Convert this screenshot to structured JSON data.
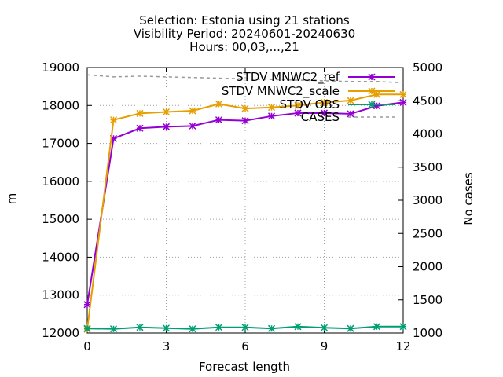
{
  "chart_data": {
    "type": "line",
    "title_lines": [
      "Selection: Estonia using    21 stations",
      "Visibility   Period: 20240601-20240630",
      "Hours: 00,03,...,21"
    ],
    "xlabel": "Forecast length",
    "ylabel": "m",
    "y2label": "No cases",
    "xlim": [
      0,
      12
    ],
    "ylim": [
      12000,
      19000
    ],
    "y2lim": [
      1000,
      5000
    ],
    "xticks": [
      0,
      3,
      6,
      9,
      12
    ],
    "yticks": [
      12000,
      13000,
      14000,
      15000,
      16000,
      17000,
      18000,
      19000
    ],
    "y2ticks": [
      1000,
      1500,
      2000,
      2500,
      3000,
      3500,
      4000,
      4500,
      5000
    ],
    "grid": true,
    "legend_position": "top-right",
    "series": [
      {
        "name": "STDV MNWC2_ref",
        "color": "#9400d3",
        "axis": "y",
        "marker": "star",
        "x": [
          0,
          1,
          2,
          3,
          4,
          5,
          6,
          7,
          8,
          9,
          10,
          11,
          12
        ],
        "values": [
          12750,
          17130,
          17400,
          17440,
          17460,
          17620,
          17600,
          17720,
          17800,
          17800,
          17780,
          17990,
          18080
        ]
      },
      {
        "name": "STDV MNWC2_scale",
        "color": "#e69f00",
        "axis": "y",
        "marker": "star",
        "x": [
          0,
          1,
          2,
          3,
          4,
          5,
          6,
          7,
          8,
          9,
          10,
          11,
          12
        ],
        "values": [
          12100,
          17620,
          17790,
          17830,
          17860,
          18040,
          17920,
          17950,
          18000,
          18080,
          18130,
          18290,
          18290
        ]
      },
      {
        "name": "STDV OBS",
        "color": "#009e73",
        "axis": "y",
        "marker": "star",
        "x": [
          0,
          1,
          2,
          3,
          4,
          5,
          6,
          7,
          8,
          9,
          10,
          11,
          12
        ],
        "values": [
          12120,
          12110,
          12150,
          12130,
          12110,
          12150,
          12150,
          12120,
          12170,
          12140,
          12120,
          12170,
          12170
        ]
      },
      {
        "name": "CASES",
        "color": "#999999",
        "axis": "y2",
        "dashed": true,
        "x": [
          0,
          1,
          2,
          3,
          4,
          5,
          6,
          7,
          8,
          9,
          10,
          11,
          12
        ],
        "values": [
          4890,
          4860,
          4870,
          4860,
          4850,
          4840,
          4830,
          4820,
          4810,
          4800,
          4790,
          4790,
          4770
        ]
      }
    ]
  }
}
